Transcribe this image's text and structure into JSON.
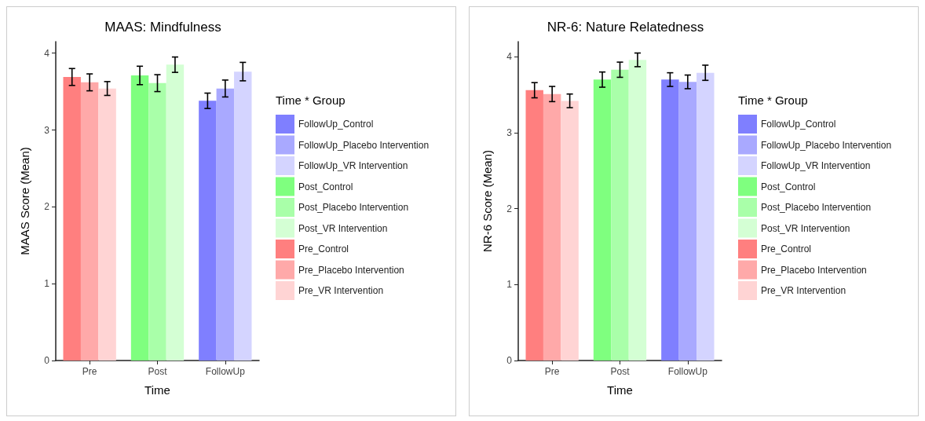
{
  "chart_data": [
    {
      "type": "bar",
      "title": "MAAS: Mindfulness",
      "xlabel": "Time",
      "ylabel": "MAAS Score (Mean)",
      "legend_title": "Time * Group",
      "legend": "right",
      "grid": false,
      "categories": [
        "Pre",
        "Post",
        "FollowUp"
      ],
      "ylim": [
        0,
        4.15
      ],
      "yticks": [
        0,
        1,
        2,
        3,
        4
      ],
      "series": [
        {
          "name": "FollowUp_Control",
          "color": "#7f7fff",
          "values": [
            null,
            null,
            3.38
          ],
          "errors": [
            null,
            null,
            0.1
          ]
        },
        {
          "name": "FollowUp_Placebo Intervention",
          "color": "#a9a9ff",
          "values": [
            null,
            null,
            3.54
          ],
          "errors": [
            null,
            null,
            0.11
          ]
        },
        {
          "name": "FollowUp_VR Intervention",
          "color": "#d4d4ff",
          "values": [
            null,
            null,
            3.76
          ],
          "errors": [
            null,
            null,
            0.12
          ]
        },
        {
          "name": "Post_Control",
          "color": "#7fff7f",
          "values": [
            null,
            3.71,
            null
          ],
          "errors": [
            null,
            0.12,
            null
          ]
        },
        {
          "name": "Post_Placebo Intervention",
          "color": "#a9ffa9",
          "values": [
            null,
            3.61,
            null
          ],
          "errors": [
            null,
            0.11,
            null
          ]
        },
        {
          "name": "Post_VR Intervention",
          "color": "#d4ffd4",
          "values": [
            null,
            3.85,
            null
          ],
          "errors": [
            null,
            0.1,
            null
          ]
        },
        {
          "name": "Pre_Control",
          "color": "#ff7f7f",
          "values": [
            3.69,
            null,
            null
          ],
          "errors": [
            0.11,
            null,
            null
          ]
        },
        {
          "name": "Pre_Placebo Intervention",
          "color": "#ffa9a9",
          "values": [
            3.62,
            null,
            null
          ],
          "errors": [
            0.11,
            null,
            null
          ]
        },
        {
          "name": "Pre_VR Intervention",
          "color": "#ffd4d4",
          "values": [
            3.54,
            null,
            null
          ],
          "errors": [
            0.09,
            null,
            null
          ]
        }
      ]
    },
    {
      "type": "bar",
      "title": "NR-6: Nature Relatedness",
      "xlabel": "Time",
      "ylabel": "NR-6 Score (Mean)",
      "legend_title": "Time * Group",
      "legend": "right",
      "grid": false,
      "categories": [
        "Pre",
        "Post",
        "FollowUp"
      ],
      "ylim": [
        0,
        4.2
      ],
      "yticks": [
        0,
        1,
        2,
        3,
        4
      ],
      "series": [
        {
          "name": "FollowUp_Control",
          "color": "#7f7fff",
          "values": [
            null,
            null,
            3.7
          ],
          "errors": [
            null,
            null,
            0.09
          ]
        },
        {
          "name": "FollowUp_Placebo Intervention",
          "color": "#a9a9ff",
          "values": [
            null,
            null,
            3.67
          ],
          "errors": [
            null,
            null,
            0.09
          ]
        },
        {
          "name": "FollowUp_VR Intervention",
          "color": "#d4d4ff",
          "values": [
            null,
            null,
            3.79
          ],
          "errors": [
            null,
            null,
            0.1
          ]
        },
        {
          "name": "Post_Control",
          "color": "#7fff7f",
          "values": [
            null,
            3.7,
            null
          ],
          "errors": [
            null,
            0.1,
            null
          ]
        },
        {
          "name": "Post_Placebo Intervention",
          "color": "#a9ffa9",
          "values": [
            null,
            3.83,
            null
          ],
          "errors": [
            null,
            0.1,
            null
          ]
        },
        {
          "name": "Post_VR Intervention",
          "color": "#d4ffd4",
          "values": [
            null,
            3.96,
            null
          ],
          "errors": [
            null,
            0.09,
            null
          ]
        },
        {
          "name": "Pre_Control",
          "color": "#ff7f7f",
          "values": [
            3.56,
            null,
            null
          ],
          "errors": [
            0.1,
            null,
            null
          ]
        },
        {
          "name": "Pre_Placebo Intervention",
          "color": "#ffa9a9",
          "values": [
            3.51,
            null,
            null
          ],
          "errors": [
            0.1,
            null,
            null
          ]
        },
        {
          "name": "Pre_VR Intervention",
          "color": "#ffd4d4",
          "values": [
            3.42,
            null,
            null
          ],
          "errors": [
            0.09,
            null,
            null
          ]
        }
      ]
    }
  ]
}
